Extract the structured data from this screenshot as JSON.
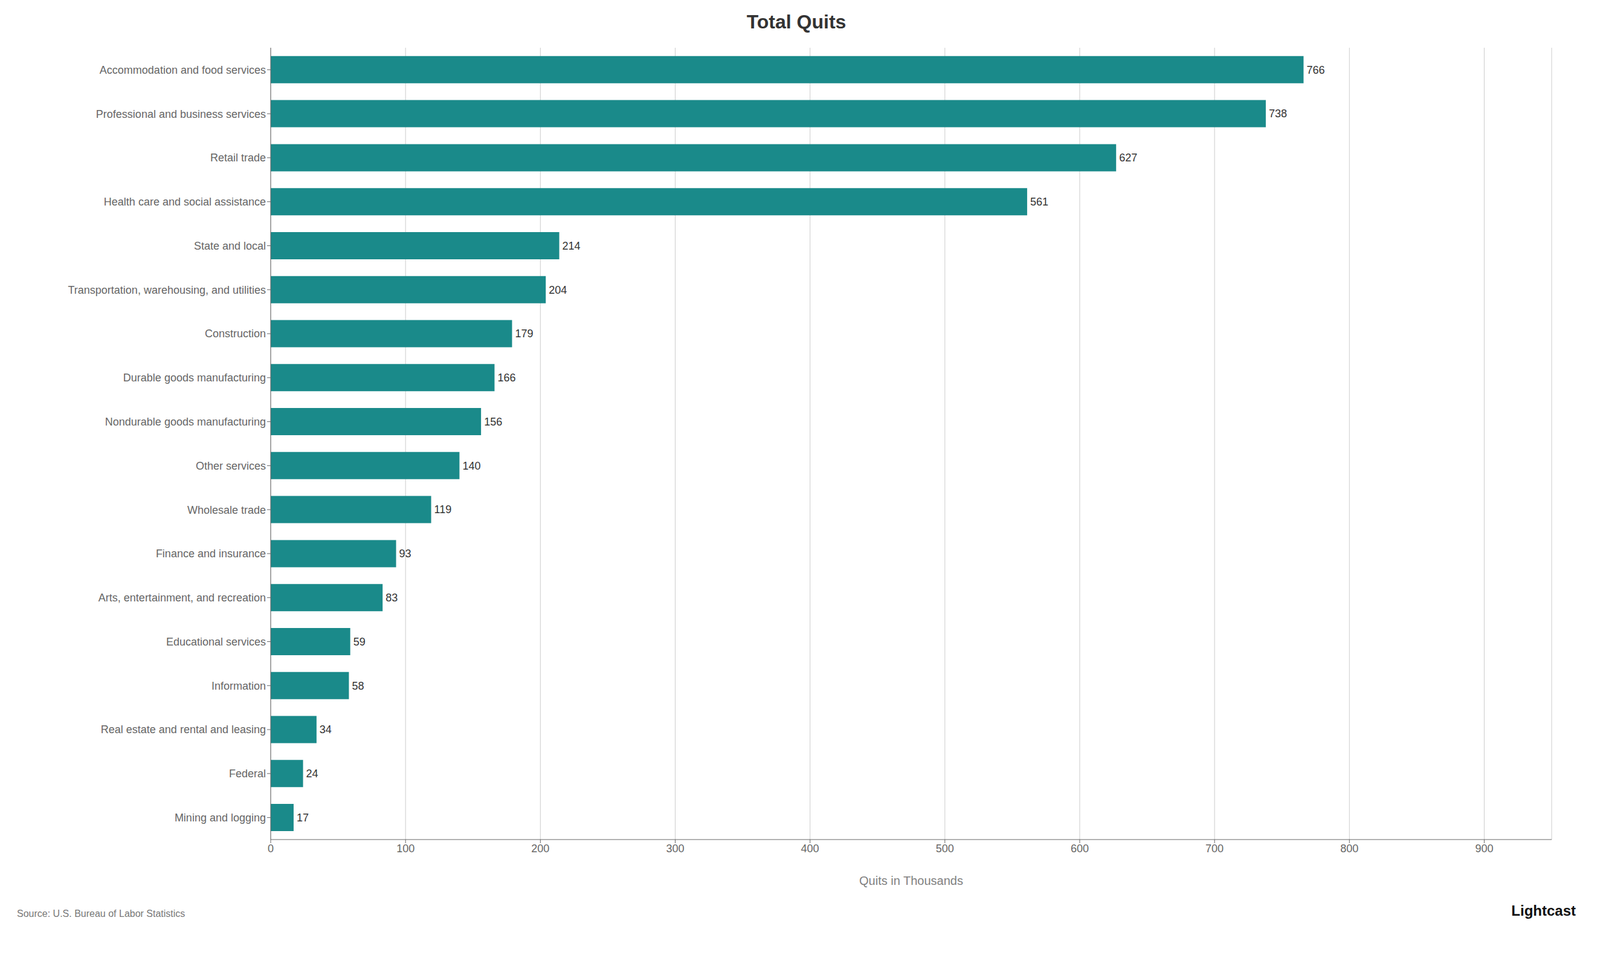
{
  "chart_data": {
    "type": "bar",
    "orientation": "horizontal",
    "title": "Total Quits",
    "xlabel": "Quits in Thousands",
    "categories": [
      "Mining and logging",
      "Federal",
      "Real estate and rental and leasing",
      "Information",
      "Educational services",
      "Arts, entertainment, and recreation",
      "Finance and insurance",
      "Wholesale trade",
      "Other services",
      "Nondurable goods manufacturing",
      "Durable goods manufacturing",
      "Construction",
      "Transportation, warehousing, and utilities",
      "State and local",
      "Health care and social assistance",
      "Retail trade",
      "Professional and business services",
      "Accommodation and food services"
    ],
    "values": [
      17,
      24,
      34,
      58,
      59,
      83,
      93,
      119,
      140,
      156,
      166,
      179,
      204,
      214,
      561,
      627,
      738,
      766
    ],
    "color": "#1a8a8a",
    "xlim": [
      0,
      950
    ],
    "xticks": [
      0,
      100,
      200,
      300,
      400,
      500,
      600,
      700,
      800,
      900
    ],
    "grid": true,
    "data_labels": true,
    "annotations": [
      "Source:  U.S. Bureau of Labor Statistics",
      "Lightcast"
    ]
  }
}
